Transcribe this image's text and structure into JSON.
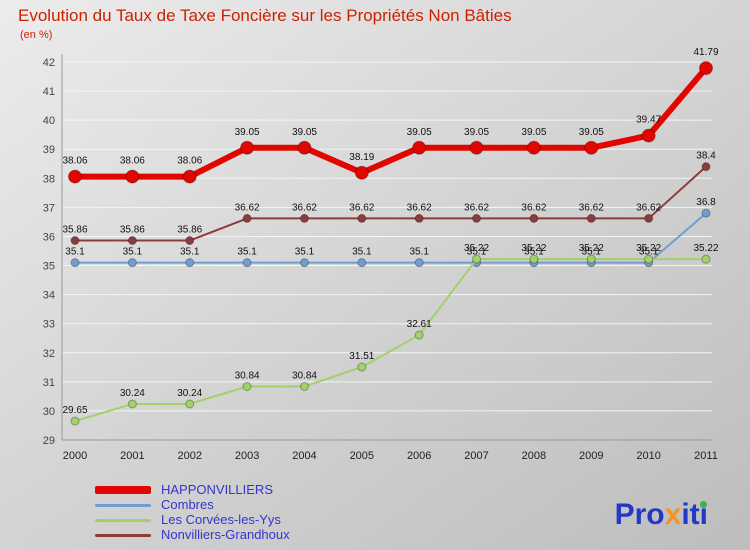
{
  "title": "Evolution du Taux de Taxe Foncière sur les Propriétés Non Bâties",
  "subtitle": "(en %)",
  "title_color": "#cc2200",
  "chart_data": {
    "type": "line",
    "x": [
      2000,
      2001,
      2002,
      2003,
      2004,
      2005,
      2006,
      2007,
      2008,
      2009,
      2010,
      2011
    ],
    "ylim": [
      29,
      42
    ],
    "ytick_step": 1,
    "grid": true,
    "legend_position": "bottom-left",
    "xlabel": "",
    "ylabel": "",
    "series": [
      {
        "name": "HAPPONVILLIERS",
        "color": "#e10600",
        "line_width": 6,
        "values": [
          38.06,
          38.06,
          38.06,
          39.05,
          39.05,
          38.19,
          39.05,
          39.05,
          39.05,
          39.05,
          39.47,
          41.79
        ]
      },
      {
        "name": "Combres",
        "color": "#6f9fd0",
        "line_width": 2,
        "values": [
          35.1,
          35.1,
          35.1,
          35.1,
          35.1,
          35.1,
          35.1,
          35.1,
          35.1,
          35.1,
          35.1,
          36.8
        ]
      },
      {
        "name": "Les Corvées-les-Yys",
        "color": "#a2d06a",
        "line_width": 2,
        "values": [
          29.65,
          30.24,
          30.24,
          30.84,
          30.84,
          31.51,
          32.61,
          35.22,
          35.22,
          35.22,
          35.22,
          35.22
        ]
      },
      {
        "name": "Nonvilliers-Grandhoux",
        "color": "#8e3b3b",
        "line_width": 2,
        "values": [
          35.86,
          35.86,
          35.86,
          36.62,
          36.62,
          36.62,
          36.62,
          36.62,
          36.62,
          36.62,
          36.62,
          38.4
        ]
      }
    ]
  },
  "logo": {
    "part1": "Pro",
    "part2": "x",
    "part3": "iti"
  }
}
